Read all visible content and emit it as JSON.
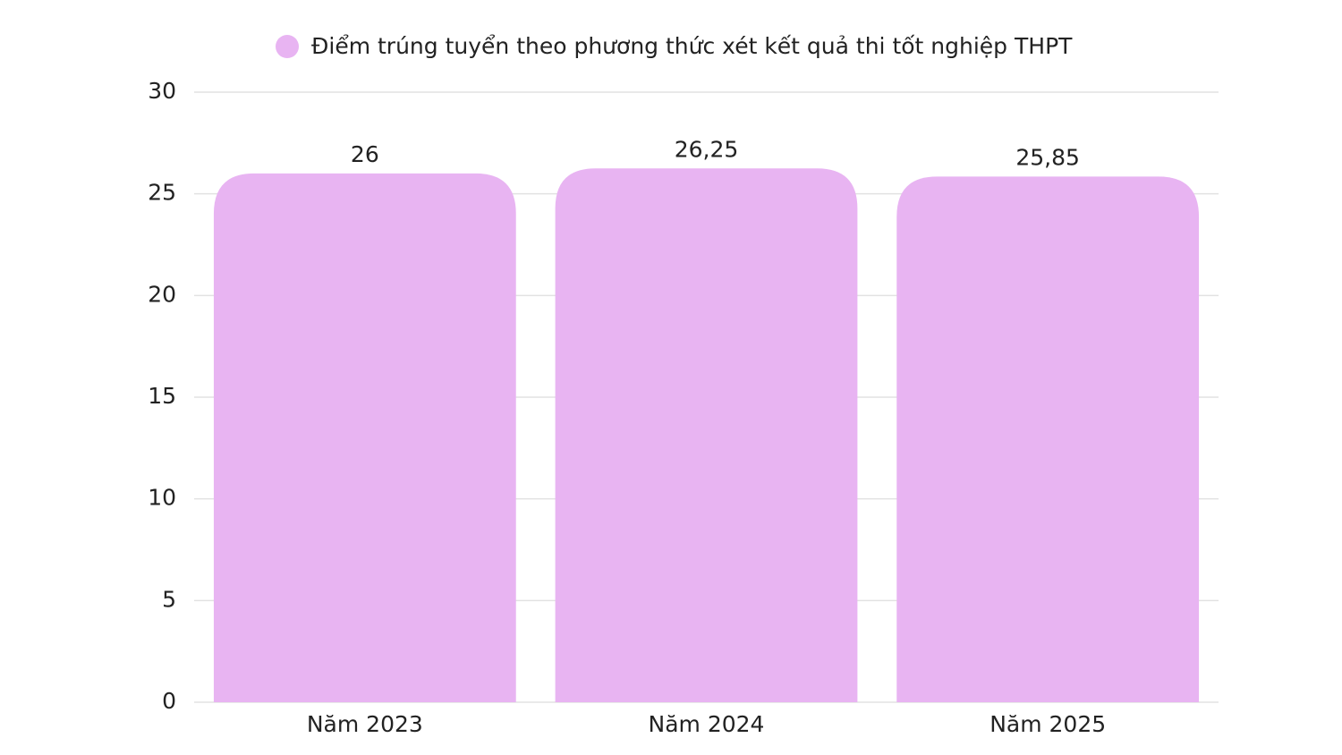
{
  "chart_data": {
    "type": "bar",
    "categories": [
      "Năm 2023",
      "Năm 2024",
      "Năm 2025"
    ],
    "series": [
      {
        "name": "Điểm trúng tuyển theo phương thức xét kết quả thi tốt nghiệp THPT",
        "color": "#e8b4f2",
        "values": [
          26,
          26.25,
          25.85
        ],
        "value_labels": [
          "26",
          "26,25",
          "25,85"
        ]
      }
    ],
    "ylim": [
      0,
      30
    ],
    "yticks": [
      0,
      5,
      10,
      15,
      20,
      25,
      30
    ],
    "grid": true,
    "legend": "top"
  }
}
